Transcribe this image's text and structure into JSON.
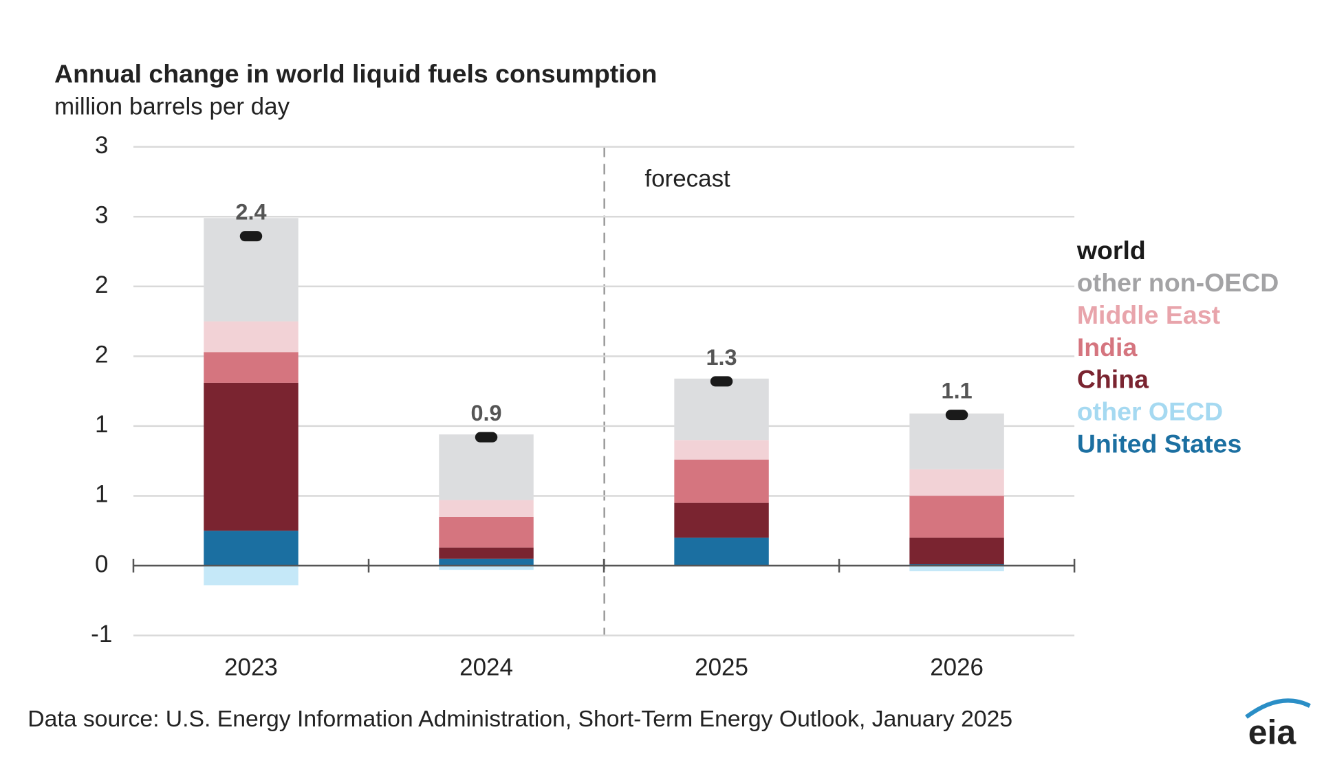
{
  "chart_data": {
    "type": "bar",
    "stacked": true,
    "title": "Annual change in world liquid fuels consumption",
    "subtitle": "million barrels per day",
    "annotation": "forecast",
    "source": "Data source: U.S. Energy Information Administration, Short-Term Energy Outlook, January 2025",
    "logo": "eia",
    "categories": [
      "2023",
      "2024",
      "2025",
      "2026"
    ],
    "series": [
      {
        "name": "United States",
        "color": "#1b6fa1",
        "label_color": "#1b6fa1",
        "values": [
          0.25,
          0.05,
          0.2,
          0.01
        ]
      },
      {
        "name": "other OECD",
        "color": "#c5e8f8",
        "label_color": "#a5d9f1",
        "values": [
          -0.14,
          -0.03,
          0,
          -0.04
        ]
      },
      {
        "name": "China",
        "color": "#7a2430",
        "label_color": "#7a2430",
        "values": [
          1.06,
          0.08,
          0.25,
          0.19
        ]
      },
      {
        "name": "India",
        "color": "#d5757f",
        "label_color": "#d5757f",
        "values": [
          0.22,
          0.22,
          0.31,
          0.3
        ]
      },
      {
        "name": "Middle East",
        "color": "#f2d2d6",
        "label_color": "#e8a4ab",
        "values": [
          0.22,
          0.12,
          0.14,
          0.19
        ]
      },
      {
        "name": "other non-OECD",
        "color": "#dcdddf",
        "label_color": "#a3a3a5",
        "values": [
          0.74,
          0.47,
          0.44,
          0.4
        ]
      },
      {
        "name": "world",
        "type": "marker",
        "color": "#1a1a1a",
        "label_color": "#1a1a1a",
        "values": [
          2.36,
          0.92,
          1.32,
          1.08
        ],
        "value_labels": [
          "2.4",
          "0.9",
          "1.3",
          "1.1"
        ]
      }
    ],
    "ylim": [
      -0.5,
      3
    ],
    "yticks": [
      {
        "value": 3,
        "label": "3"
      },
      {
        "value": 2.5,
        "label": "3"
      },
      {
        "value": 2,
        "label": "2"
      },
      {
        "value": 1.5,
        "label": "2"
      },
      {
        "value": 1,
        "label": "1"
      },
      {
        "value": 0.5,
        "label": "1"
      },
      {
        "value": 0,
        "label": "0"
      },
      {
        "value": -0.5,
        "label": "-1"
      }
    ],
    "grid": true
  }
}
